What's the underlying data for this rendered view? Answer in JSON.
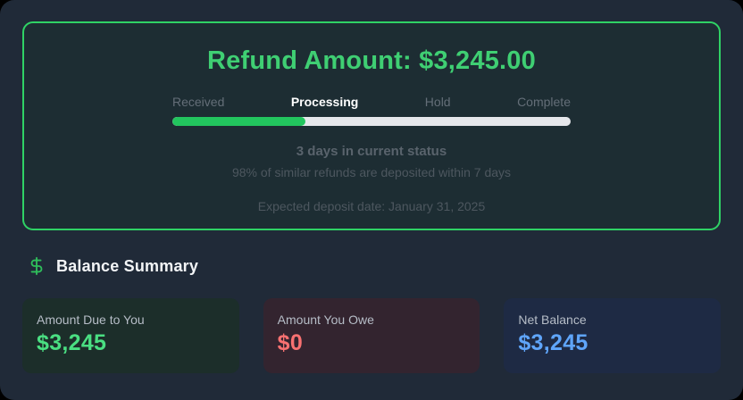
{
  "refund_card": {
    "title": "Refund Amount: $3,245.00",
    "stages": [
      {
        "label": "Received",
        "active": false
      },
      {
        "label": "Processing",
        "active": true
      },
      {
        "label": "Hold",
        "active": false
      },
      {
        "label": "Complete",
        "active": false
      }
    ],
    "progress_percent": 33.4,
    "progress_fill_color": "#22C55E",
    "progress_track_color": "#E5E7EB",
    "status_primary": "3 days in current status",
    "status_secondary": "98% of similar refunds are deposited within 7 days",
    "expected_deposit": "Expected deposit date: January 31, 2025",
    "border_color": "#2FD265",
    "title_color": "#3FCF73"
  },
  "balance_summary": {
    "icon": "dollar-sign-icon",
    "icon_color": "#2FBF5B",
    "title": "Balance Summary",
    "cards": [
      {
        "label": "Amount Due to You",
        "value": "$3,245",
        "value_color": "#4ADF82",
        "bg_color": "#1C2E2A"
      },
      {
        "label": "Amount You Owe",
        "value": "$0",
        "value_color": "#F87171",
        "bg_color": "#33242F"
      },
      {
        "label": "Net Balance",
        "value": "$3,245",
        "value_color": "#5FA5FA",
        "bg_color": "#1E2A44"
      }
    ]
  }
}
